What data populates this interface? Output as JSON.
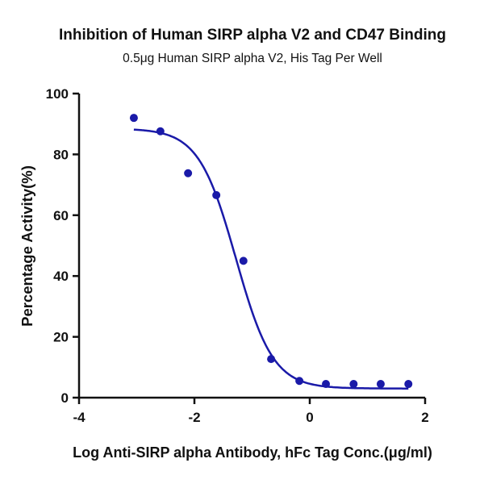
{
  "chart_data": {
    "type": "scatter",
    "title": "Inhibition of Human SIRP alpha V2 and CD47 Binding",
    "subtitle": "0.5μg Human SIRP alpha V2, His Tag Per Well",
    "xlabel": "Log Anti-SIRP alpha Antibody, hFc Tag Conc.(μg/ml)",
    "ylabel": "Percentage Activity(%)",
    "xlim": [
      -4,
      2
    ],
    "ylim": [
      0,
      100
    ],
    "xticks": [
      -4,
      -2,
      0,
      2
    ],
    "yticks": [
      0,
      20,
      40,
      60,
      80,
      100
    ],
    "grid": false,
    "color": "#1a1aa8",
    "points": {
      "x": [
        -3.05,
        -2.59,
        -2.11,
        -1.62,
        -1.15,
        -0.67,
        -0.18,
        0.28,
        0.76,
        1.23,
        1.71
      ],
      "y": [
        92.0,
        87.6,
        73.8,
        66.6,
        45.0,
        12.7,
        5.5,
        4.5,
        4.5,
        4.5,
        4.5
      ]
    },
    "fit": {
      "model": "4PL",
      "top": 88.5,
      "bottom": 3.0,
      "log_ic50": -1.28,
      "hill": 1.35
    }
  }
}
